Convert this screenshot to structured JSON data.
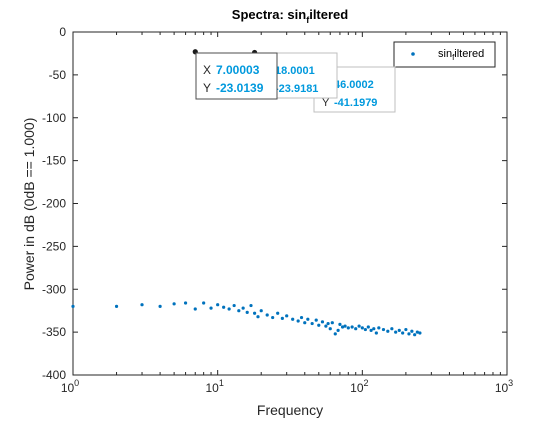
{
  "colors": {
    "series": "#0072BD",
    "datatip_value": "#0099DD",
    "datatip_key": "#262626",
    "axis": "#262626",
    "background": "#ffffff"
  },
  "chart_data": {
    "type": "scatter",
    "title": {
      "main": "Spectra: sin",
      "sub": "f",
      "rest": "iltered"
    },
    "xlabel": "Frequency",
    "ylabel": "Power in dB (0dB == 1.000)",
    "xscale": "log",
    "xlim": [
      1,
      1000
    ],
    "ylim": [
      -400,
      0
    ],
    "x_ticks": [
      {
        "value": 1,
        "base": "10",
        "exp": "0"
      },
      {
        "value": 10,
        "base": "10",
        "exp": "1"
      },
      {
        "value": 100,
        "base": "10",
        "exp": "2"
      },
      {
        "value": 1000,
        "base": "10",
        "exp": "3"
      }
    ],
    "y_ticks": [
      0,
      -50,
      -100,
      -150,
      -200,
      -250,
      -300,
      -350,
      -400
    ],
    "grid": false,
    "legend": {
      "position": "top-right",
      "entries": [
        {
          "main": "sin",
          "sub": "f",
          "rest": "iltered"
        }
      ]
    },
    "series": [
      {
        "name": "sin_filtered",
        "points": [
          [
            1,
            -320
          ],
          [
            2,
            -320
          ],
          [
            3,
            -318
          ],
          [
            4,
            -320
          ],
          [
            5,
            -317
          ],
          [
            6,
            -316
          ],
          [
            7,
            -323
          ],
          [
            8,
            -316
          ],
          [
            9,
            -322
          ],
          [
            10,
            -318
          ],
          [
            11,
            -321
          ],
          [
            12,
            -323
          ],
          [
            13,
            -319
          ],
          [
            14,
            -325
          ],
          [
            15,
            -322
          ],
          [
            16,
            -327
          ],
          [
            17,
            -319
          ],
          [
            18,
            -328
          ],
          [
            19,
            -332
          ],
          [
            20,
            -325
          ],
          [
            22,
            -330
          ],
          [
            24,
            -333
          ],
          [
            26,
            -328
          ],
          [
            28,
            -334
          ],
          [
            30,
            -331
          ],
          [
            33,
            -335
          ],
          [
            36,
            -337
          ],
          [
            38,
            -333
          ],
          [
            40,
            -339
          ],
          [
            42,
            -335
          ],
          [
            45,
            -340
          ],
          [
            48,
            -336
          ],
          [
            50,
            -342
          ],
          [
            53,
            -338
          ],
          [
            56,
            -343
          ],
          [
            58,
            -340
          ],
          [
            60,
            -346
          ],
          [
            62,
            -339
          ],
          [
            65,
            -352
          ],
          [
            68,
            -348
          ],
          [
            70,
            -341
          ],
          [
            73,
            -344
          ],
          [
            76,
            -343
          ],
          [
            80,
            -345
          ],
          [
            85,
            -344
          ],
          [
            90,
            -346
          ],
          [
            95,
            -343
          ],
          [
            100,
            -345
          ],
          [
            105,
            -347
          ],
          [
            110,
            -344
          ],
          [
            115,
            -348
          ],
          [
            120,
            -346
          ],
          [
            125,
            -351
          ],
          [
            130,
            -345
          ],
          [
            140,
            -347
          ],
          [
            150,
            -349
          ],
          [
            160,
            -346
          ],
          [
            170,
            -350
          ],
          [
            180,
            -348
          ],
          [
            190,
            -351
          ],
          [
            200,
            -347
          ],
          [
            210,
            -352
          ],
          [
            220,
            -349
          ],
          [
            230,
            -353
          ],
          [
            240,
            -350
          ],
          [
            250,
            -351
          ]
        ]
      }
    ],
    "datatips": [
      {
        "x_key": "X",
        "y_key": "Y",
        "x": "7.00003",
        "y": "-23.0139"
      },
      {
        "x_key": "",
        "y_key": "",
        "x": "18.0001",
        "y": "-23.9181"
      },
      {
        "x_key": "",
        "y_key": "Y",
        "x": "46.0002",
        "y": "-41.1979"
      }
    ],
    "datatip_points": [
      [
        7.00003,
        -23.0139
      ],
      [
        18.0001,
        -23.9181
      ],
      [
        46.0002,
        -41.1979
      ]
    ]
  }
}
